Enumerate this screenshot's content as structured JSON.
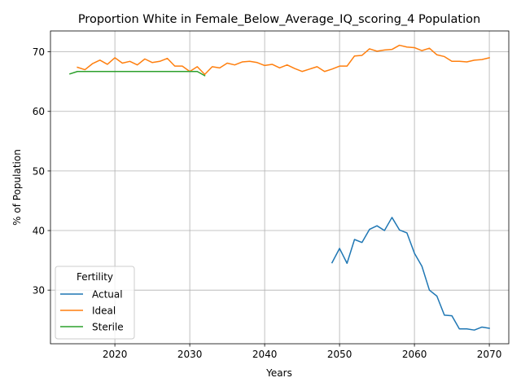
{
  "chart_data": {
    "type": "line",
    "title": "Proportion White in Female_Below_Average_IQ_scoring_4 Population",
    "xlabel": "Years",
    "ylabel": "% of Population",
    "xlim": [
      2011.4,
      2072.6
    ],
    "ylim": [
      21.0,
      73.5
    ],
    "xticks": [
      2020,
      2030,
      2040,
      2050,
      2060,
      2070
    ],
    "yticks": [
      30,
      40,
      50,
      60,
      70
    ],
    "grid": true,
    "legend": {
      "title": "Fertility",
      "placement": "lower-left"
    },
    "series": [
      {
        "name": "Actual",
        "color": "#1f77b4",
        "x": [
          2049,
          2050,
          2051,
          2052,
          2053,
          2054,
          2055,
          2056,
          2057,
          2058,
          2059,
          2060,
          2061,
          2062,
          2063,
          2064,
          2065,
          2066,
          2067,
          2068,
          2069,
          2070
        ],
        "y": [
          34.6,
          37.0,
          34.5,
          38.5,
          38.0,
          40.2,
          40.8,
          40.0,
          42.2,
          40.1,
          39.6,
          36.2,
          34.0,
          30.0,
          29.0,
          25.8,
          25.7,
          23.5,
          23.5,
          23.3,
          23.8,
          23.6
        ]
      },
      {
        "name": "Ideal",
        "color": "#ff7f0e",
        "x": [
          2015,
          2016,
          2017,
          2018,
          2019,
          2020,
          2021,
          2022,
          2023,
          2024,
          2025,
          2026,
          2027,
          2028,
          2029,
          2030,
          2031,
          2032,
          2033,
          2034,
          2035,
          2036,
          2037,
          2038,
          2039,
          2040,
          2041,
          2042,
          2043,
          2044,
          2045,
          2046,
          2047,
          2048,
          2049,
          2050,
          2051,
          2052,
          2053,
          2054,
          2055,
          2056,
          2057,
          2058,
          2059,
          2060,
          2061,
          2062,
          2063,
          2064,
          2065,
          2066,
          2067,
          2068,
          2069,
          2070
        ],
        "y": [
          67.4,
          67.0,
          68.0,
          68.6,
          67.9,
          69.0,
          68.1,
          68.4,
          67.8,
          68.8,
          68.2,
          68.4,
          68.9,
          67.6,
          67.6,
          66.7,
          67.5,
          66.2,
          67.5,
          67.3,
          68.1,
          67.8,
          68.3,
          68.4,
          68.2,
          67.7,
          67.9,
          67.3,
          67.8,
          67.2,
          66.7,
          67.1,
          67.5,
          66.7,
          67.1,
          67.6,
          67.6,
          69.3,
          69.4,
          70.5,
          70.1,
          70.3,
          70.4,
          71.1,
          70.8,
          70.7,
          70.2,
          70.6,
          69.5,
          69.2,
          68.4,
          68.4,
          68.3,
          68.6,
          68.7,
          69.0
        ]
      },
      {
        "name": "Sterile",
        "color": "#2ca02c",
        "x": [
          2014,
          2015,
          2016,
          2017,
          2018,
          2019,
          2020,
          2021,
          2022,
          2023,
          2024,
          2025,
          2026,
          2027,
          2028,
          2029,
          2030,
          2031,
          2032
        ],
        "y": [
          66.3,
          66.7,
          66.7,
          66.7,
          66.7,
          66.7,
          66.7,
          66.7,
          66.7,
          66.7,
          66.7,
          66.7,
          66.7,
          66.7,
          66.7,
          66.7,
          66.7,
          66.7,
          66.0
        ]
      }
    ]
  }
}
